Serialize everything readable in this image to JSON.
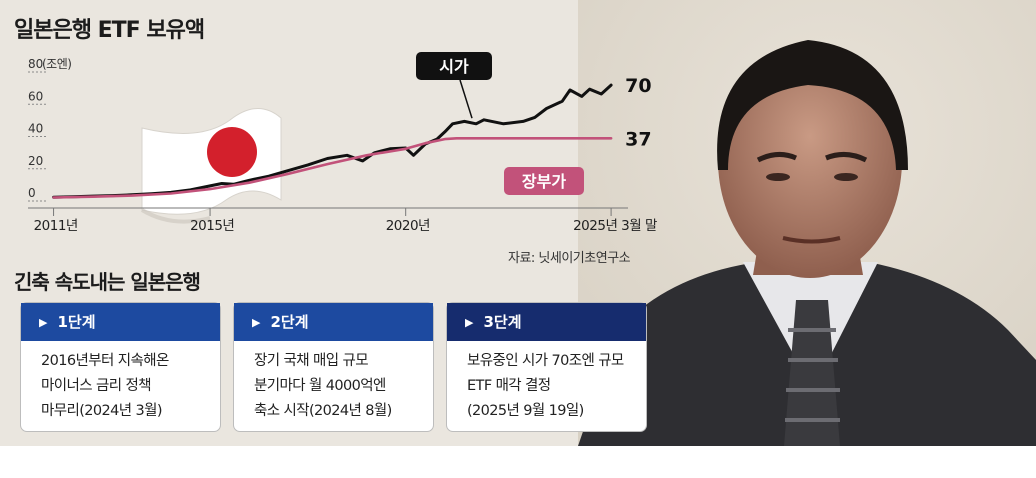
{
  "header": {
    "title": "일본은행 ETF 보유액"
  },
  "chart_data": {
    "type": "line",
    "unit_label": "(조엔)",
    "y_ticks": [
      "80",
      "60",
      "40",
      "20",
      "0"
    ],
    "ylim": [
      0,
      80
    ],
    "x_ticks": [
      "2011년",
      "2015년",
      "2020년",
      "2025년 3월 말"
    ],
    "x_tick_values": [
      2011,
      2015,
      2020,
      2025.25
    ],
    "xlim": [
      2010.5,
      2026.5
    ],
    "series": [
      {
        "name": "시가",
        "color": "#111111",
        "end_label": "70",
        "x": [
          2011.0,
          2011.5,
          2012.0,
          2012.5,
          2013.0,
          2013.5,
          2014.0,
          2014.5,
          2015.0,
          2015.3,
          2015.6,
          2016.0,
          2016.5,
          2017.0,
          2017.5,
          2018.0,
          2018.5,
          2018.9,
          2019.2,
          2019.6,
          2020.0,
          2020.2,
          2020.5,
          2020.8,
          2021.0,
          2021.2,
          2021.5,
          2021.8,
          2022.0,
          2022.5,
          2023.0,
          2023.3,
          2023.6,
          2024.0,
          2024.2,
          2024.5,
          2024.7,
          2025.0,
          2025.25
        ],
        "values": [
          0.5,
          0.8,
          1.2,
          1.5,
          2.0,
          2.6,
          3.5,
          5.0,
          7.5,
          9.0,
          8.5,
          11.0,
          13.5,
          17.0,
          20.5,
          24.5,
          26.5,
          23.0,
          28.0,
          30.5,
          31.0,
          26.5,
          33.5,
          36.5,
          41.0,
          46.0,
          47.5,
          46.0,
          48.5,
          46.0,
          47.5,
          50.0,
          55.5,
          60.0,
          67.0,
          63.0,
          67.5,
          64.5,
          70.0
        ]
      },
      {
        "name": "장부가",
        "color": "#c2527a",
        "end_label": "37",
        "x": [
          2011.0,
          2012.0,
          2013.0,
          2014.0,
          2015.0,
          2016.0,
          2017.0,
          2018.0,
          2019.0,
          2020.0,
          2020.5,
          2021.0,
          2021.3,
          2022.0,
          2023.0,
          2024.0,
          2025.25
        ],
        "values": [
          0.3,
          0.8,
          1.5,
          2.8,
          5.5,
          9.5,
          15.0,
          21.0,
          26.5,
          30.5,
          34.0,
          36.5,
          37.0,
          37.0,
          37.0,
          37.0,
          37.0
        ]
      }
    ]
  },
  "source": "자료: 닛세이기초연구소",
  "steps": {
    "title": "긴축 속도내는 일본은행",
    "items": [
      {
        "label": "1단계",
        "color": "#1d4aa0",
        "lines": [
          "2016년부터 지속해온",
          "마이너스 금리 정책",
          "마무리(2024년 3월)"
        ]
      },
      {
        "label": "2단계",
        "color": "#1d4aa0",
        "lines": [
          "장기 국채 매입 규모",
          "분기마다 월 4000억엔",
          "축소 시작(2024년 8월)"
        ]
      },
      {
        "label": "3단계",
        "color": "#162c6e",
        "lines": [
          "보유중인 시가 70조엔 규모",
          "ETF 매각 결정",
          "(2025년 9월 19일)"
        ]
      }
    ]
  },
  "colors": {
    "background": "#eae6df",
    "flag_red": "#d3202c"
  }
}
